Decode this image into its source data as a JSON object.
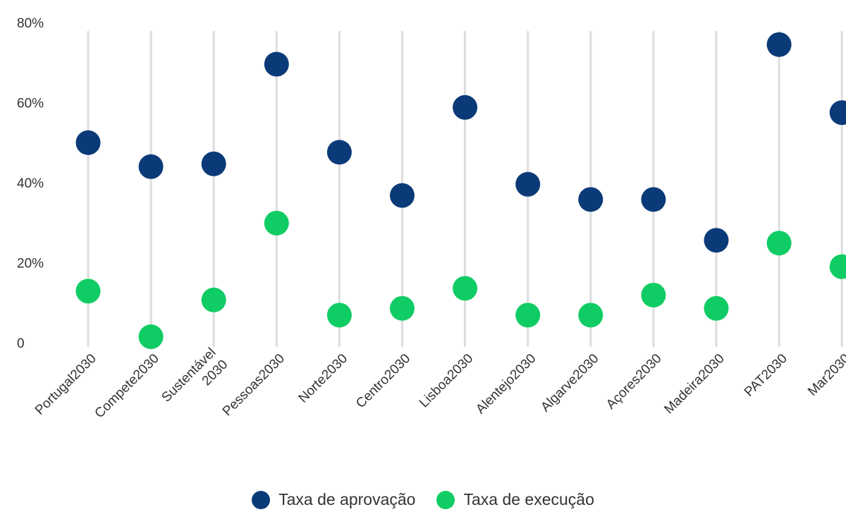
{
  "chart_data": {
    "type": "dot",
    "categories": [
      "Portugal2030",
      "Compete2030",
      "Sustentável 2030",
      "Pessoas2030",
      "Norte2030",
      "Centro2030",
      "Lisboa2030",
      "Alentejo2030",
      "Algarve2030",
      "Açores2030",
      "Madeira2030",
      "PAT2030",
      "Mar2030"
    ],
    "category_lines": [
      [
        "Portugal2030"
      ],
      [
        "Compete2030"
      ],
      [
        "Sustentável",
        "2030"
      ],
      [
        "Pessoas2030"
      ],
      [
        "Norte2030"
      ],
      [
        "Centro2030"
      ],
      [
        "Lisboa2030"
      ],
      [
        "Alentejo2030"
      ],
      [
        "Algarve2030"
      ],
      [
        "Açores2030"
      ],
      [
        "Madeira2030"
      ],
      [
        "PAT2030"
      ],
      [
        "Mar2030"
      ]
    ],
    "series": [
      {
        "name": "Taxa de aprovação",
        "color": "#0b3a78",
        "values": [
          50,
          44,
          44.7,
          69.6,
          47.6,
          36.8,
          58.8,
          39.6,
          35.8,
          35.8,
          25.6,
          74.5,
          57.5
        ]
      },
      {
        "name": "Taxa de execução",
        "color": "#10cc64",
        "values": [
          12.9,
          1.5,
          10.7,
          29.9,
          6.9,
          8.6,
          13.6,
          6.9,
          6.9,
          11.9,
          8.6,
          24.9,
          19.0
        ]
      }
    ],
    "y_ticks": [
      0,
      20,
      40,
      60,
      80
    ],
    "y_tick_labels": [
      "0",
      "20%",
      "40%",
      "60%",
      "80%"
    ],
    "ylim": [
      0,
      80
    ],
    "grid": "vertical lines per category",
    "legend_position": "bottom-center"
  }
}
